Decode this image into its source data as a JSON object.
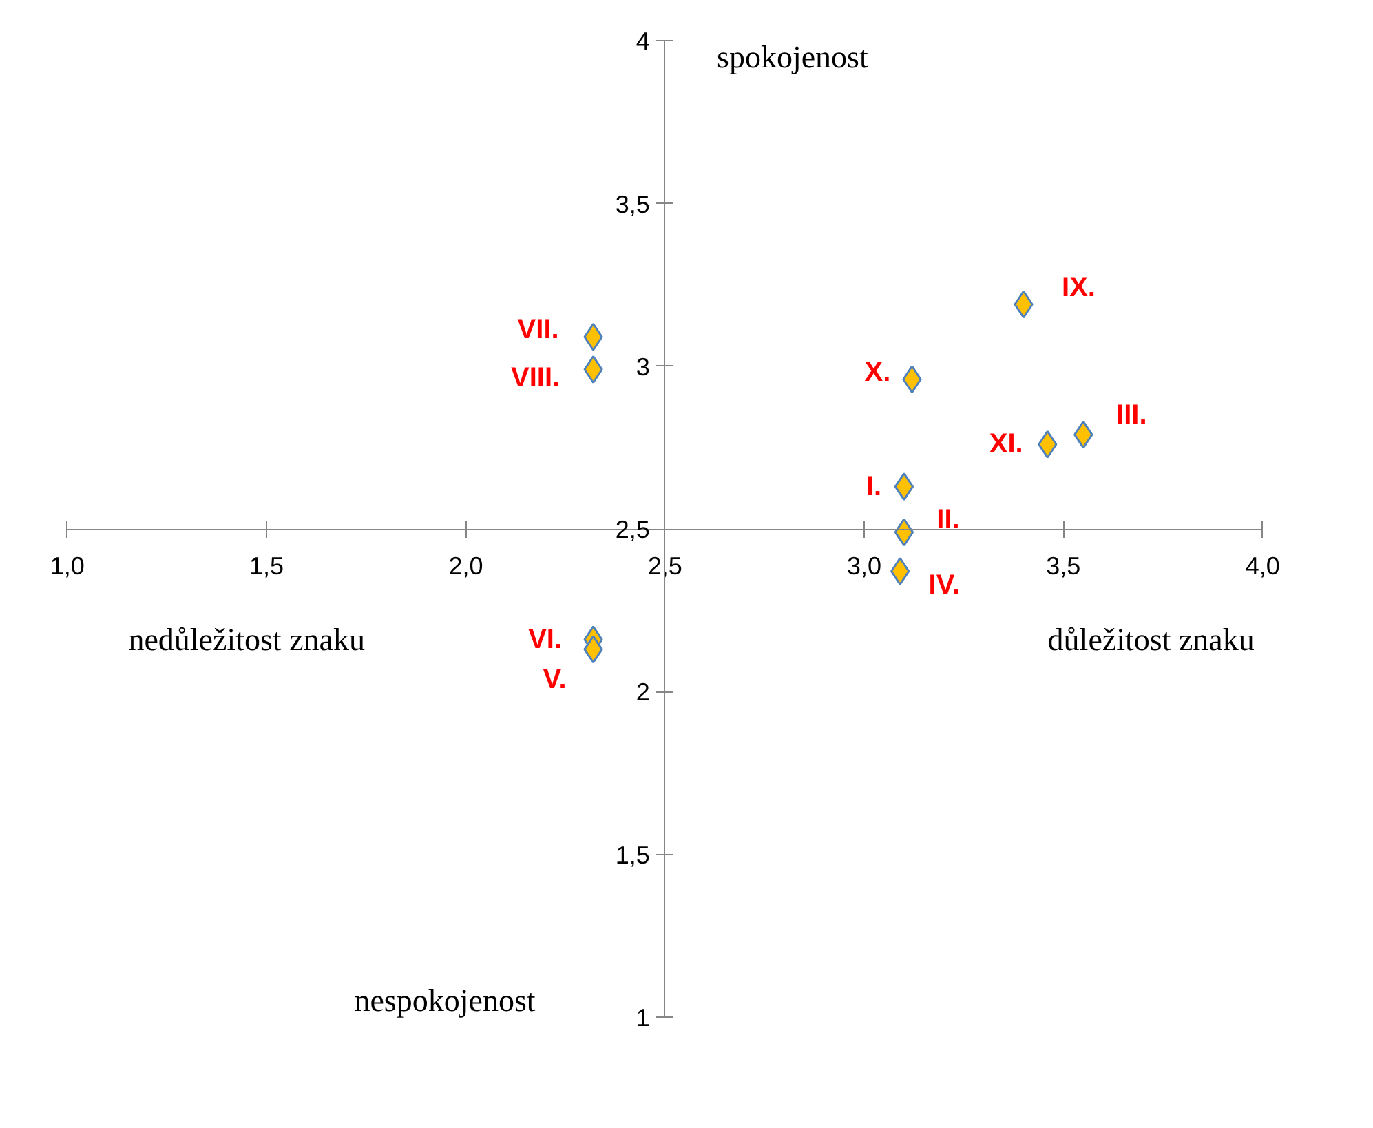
{
  "chart_data": {
    "type": "scatter",
    "x": [
      2.32,
      2.32,
      3.4,
      3.12,
      3.46,
      3.55,
      3.1,
      3.1,
      3.09,
      2.32,
      2.32
    ],
    "values": [
      3.09,
      2.99,
      3.19,
      2.96,
      2.76,
      2.79,
      2.63,
      2.49,
      2.37,
      2.16,
      2.13
    ],
    "color": "#ffc000",
    "marker": "diamond",
    "grid": false,
    "xlim": [
      1,
      4
    ],
    "ylim": [
      1,
      4
    ],
    "xticks": [
      {
        "value": 1,
        "label": "1,0"
      },
      {
        "value": 1.5,
        "label": "1,5"
      },
      {
        "value": 2,
        "label": "2,0"
      },
      {
        "value": 2.5,
        "label": "2,5"
      },
      {
        "value": 3,
        "label": "3,0"
      },
      {
        "value": 3.5,
        "label": "3,5"
      },
      {
        "value": 4,
        "label": "4,0"
      }
    ],
    "yticks": [
      1,
      {
        "value": 1.5,
        "label": "1,5"
      },
      2,
      {
        "value": 2.5,
        "label": "2,5"
      },
      3,
      {
        "value": 3.5,
        "label": "3,5"
      },
      4
    ],
    "annotations": [
      {
        "text": "VII.",
        "x": 2.32,
        "y": 3.09
      },
      {
        "text": "VIII.",
        "x": 2.32,
        "y": 2.99
      },
      {
        "text": "IX.",
        "x": 3.4,
        "y": 3.19
      },
      {
        "text": "X.",
        "x": 3.12,
        "y": 2.96
      },
      {
        "text": "XI.",
        "x": 3.46,
        "y": 2.76
      },
      {
        "text": "III.",
        "x": 3.55,
        "y": 2.79
      },
      {
        "text": "I.",
        "x": 3.1,
        "y": 2.63
      },
      {
        "text": "II.",
        "x": 3.1,
        "y": 2.49
      },
      {
        "text": "IV.",
        "x": 3.09,
        "y": 2.37
      },
      {
        "text": "VI.",
        "x": 2.32,
        "y": 2.16
      },
      {
        "text": "V.",
        "x": 2.32,
        "y": 2.13
      },
      "spokojenost",
      "nespokojenost",
      "nedůležitost znaku",
      "důležitost znaku"
    ]
  }
}
